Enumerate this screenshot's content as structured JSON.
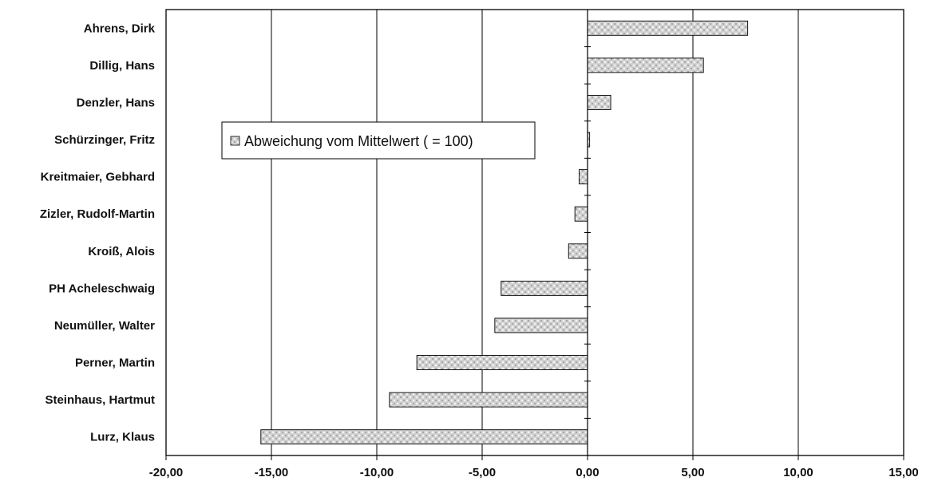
{
  "chart_data": {
    "type": "bar",
    "orientation": "horizontal",
    "categories": [
      "Ahrens, Dirk",
      "Dillig, Hans",
      "Denzler, Hans",
      "Schürzinger, Fritz",
      "Kreitmaier, Gebhard",
      "Zizler, Rudolf-Martin",
      "Kroiß, Alois",
      "PH Acheleschwaig",
      "Neumüller, Walter",
      "Perner, Martin",
      "Steinhaus, Hartmut",
      "Lurz, Klaus"
    ],
    "series": [
      {
        "name": "Abweichung vom Mittelwert  ( = 100)",
        "values": [
          7.6,
          5.5,
          1.1,
          0.1,
          -0.4,
          -0.6,
          -0.9,
          -4.1,
          -4.4,
          -8.1,
          -9.4,
          -15.5
        ]
      }
    ],
    "xlim": [
      -20,
      15
    ],
    "xticks": [
      -20,
      -15,
      -10,
      -5,
      0,
      5,
      10,
      15
    ],
    "xtick_labels": [
      "-20,00",
      "-15,00",
      "-10,00",
      "-5,00",
      "0,00",
      "5,00",
      "10,00",
      "15,00"
    ],
    "grid": "vertical",
    "legend": "upper-left inside plot",
    "bar_color": "#c8c8c8",
    "title": "",
    "xlabel": "",
    "ylabel": ""
  }
}
